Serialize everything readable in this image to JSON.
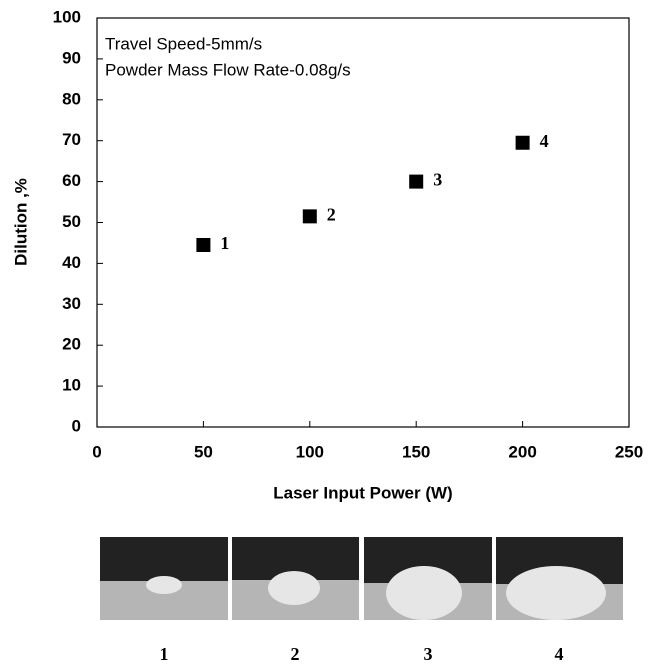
{
  "chart_data": {
    "type": "scatter",
    "annotations": [
      "Travel Speed-5mm/s",
      "Powder Mass Flow Rate-0.08g/s"
    ],
    "x_label": "Laser Input Power (W)",
    "y_label": "Dilution ,%",
    "x": [
      50,
      100,
      150,
      200
    ],
    "values": [
      44.5,
      51.5,
      60,
      69.5
    ],
    "point_labels": [
      "1",
      "2",
      "3",
      "4"
    ],
    "color": "#000000",
    "xlim": [
      0,
      250
    ],
    "xticks": [
      0,
      50,
      100,
      150,
      200,
      250
    ],
    "ylim": [
      0,
      100
    ],
    "yticks": [
      0,
      10,
      20,
      30,
      40,
      50,
      60,
      70,
      80,
      90,
      100
    ],
    "image_labels": [
      "1",
      "2",
      "3",
      "4"
    ]
  }
}
